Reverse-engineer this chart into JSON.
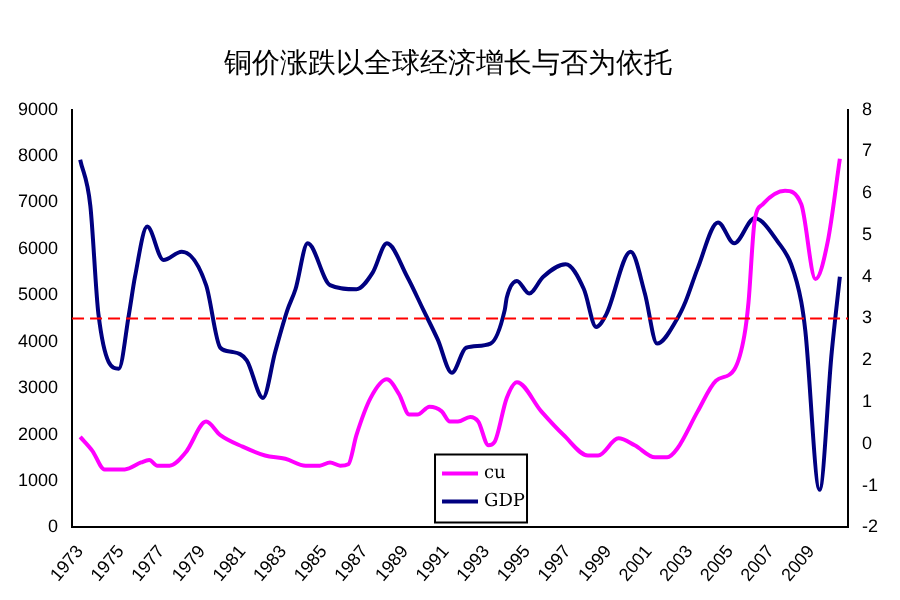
{
  "chart_data": {
    "type": "line",
    "title": "铜价涨跌以全球经济增长与否为依托",
    "xlim": [
      1972.6,
      2010.8
    ],
    "xticks": [
      1973,
      1975,
      1977,
      1979,
      1981,
      1983,
      1985,
      1987,
      1989,
      1991,
      1993,
      1995,
      1997,
      1999,
      2001,
      2003,
      2005,
      2007,
      2009
    ],
    "ylim": [
      0,
      9000
    ],
    "yticks": [
      0,
      1000,
      2000,
      3000,
      4000,
      5000,
      6000,
      7000,
      8000,
      9000
    ],
    "y2lim": [
      -2,
      8
    ],
    "y2ticks": [
      -2,
      -1,
      0,
      1,
      2,
      3,
      4,
      5,
      6,
      7,
      8
    ],
    "grid": false,
    "legend": "bottom",
    "marker": "none",
    "ref_lines": [
      {
        "axis": "y2",
        "value": 3,
        "color": "#ff0000",
        "line_style": "dashed"
      }
    ],
    "series": [
      {
        "name": "cu",
        "color": "#ff00ff",
        "x": [
          1973.0,
          1973.6,
          1974.2,
          1975.2,
          1976.0,
          1976.4,
          1976.8,
          1977.4,
          1978.2,
          1979.2,
          1979.9,
          1981.0,
          1982.1,
          1983.1,
          1984.1,
          1984.8,
          1985.3,
          1985.8,
          1986.2,
          1986.6,
          1987.3,
          1988.1,
          1988.7,
          1989.2,
          1989.6,
          1990.2,
          1990.8,
          1991.2,
          1991.6,
          1992.2,
          1992.6,
          1993.1,
          1993.4,
          1994.0,
          1994.5,
          1995.7,
          1996.8,
          1998.0,
          1998.5,
          1999.5,
          2000.3,
          2001.3,
          2001.9,
          2002.4,
          2003.4,
          2004.3,
          2005.2,
          2005.7,
          2005.9,
          2006.2,
          2006.6,
          2007.7,
          2008.5,
          2009.2,
          2009.8,
          2010.4
        ],
        "values": [
          1950,
          1650,
          1250,
          1250,
          1400,
          1450,
          1330,
          1330,
          1620,
          2280,
          1990,
          1740,
          1550,
          1480,
          1330,
          1330,
          1400,
          1330,
          1360,
          1990,
          2790,
          3190,
          2870,
          2430,
          2430,
          2600,
          2500,
          2280,
          2280,
          2380,
          2280,
          1770,
          1840,
          2790,
          3130,
          2500,
          1990,
          1550,
          1550,
          1920,
          1770,
          1510,
          1510,
          1700,
          2500,
          3160,
          3400,
          4140,
          4840,
          6590,
          6960,
          7250,
          6960,
          5350,
          6150,
          7940
        ]
      },
      {
        "name": "GDP",
        "color": "#000080",
        "axis": "y2",
        "x": [
          1973.0,
          1973.5,
          1973.9,
          1974.9,
          1975.4,
          1975.7,
          1976.3,
          1977.1,
          1978.0,
          1979.2,
          1979.9,
          1980.5,
          1981.2,
          1982.0,
          1982.6,
          1983.2,
          1983.6,
          1984.2,
          1985.3,
          1986.6,
          1987.4,
          1988.1,
          1989.1,
          1989.9,
          1990.6,
          1991.3,
          1992.0,
          1993.2,
          1993.9,
          1994.0,
          1994.5,
          1995.1,
          1995.8,
          1996.9,
          1997.8,
          1998.4,
          1998.9,
          2000.1,
          2000.8,
          2001.4,
          2002.4,
          2002.8,
          2003.4,
          2004.4,
          2005.2,
          2006.2,
          2007.4,
          2008.0,
          2008.5,
          2008.7,
          2009.4,
          2010.0,
          2010.4
        ],
        "values": [
          6.8,
          5.7,
          3.1,
          1.8,
          3.1,
          4.0,
          5.2,
          4.4,
          4.6,
          3.8,
          2.3,
          2.2,
          2.0,
          1.1,
          2.2,
          3.2,
          3.7,
          4.8,
          3.8,
          3.7,
          4.1,
          4.8,
          4.0,
          3.2,
          2.5,
          1.7,
          2.3,
          2.4,
          3.2,
          3.5,
          3.9,
          3.6,
          4.0,
          4.3,
          3.7,
          2.8,
          3.1,
          4.6,
          3.6,
          2.4,
          3.0,
          3.4,
          4.2,
          5.3,
          4.8,
          5.4,
          4.8,
          4.3,
          3.4,
          2.7,
          -1.1,
          2.2,
          4.0
        ]
      }
    ]
  }
}
